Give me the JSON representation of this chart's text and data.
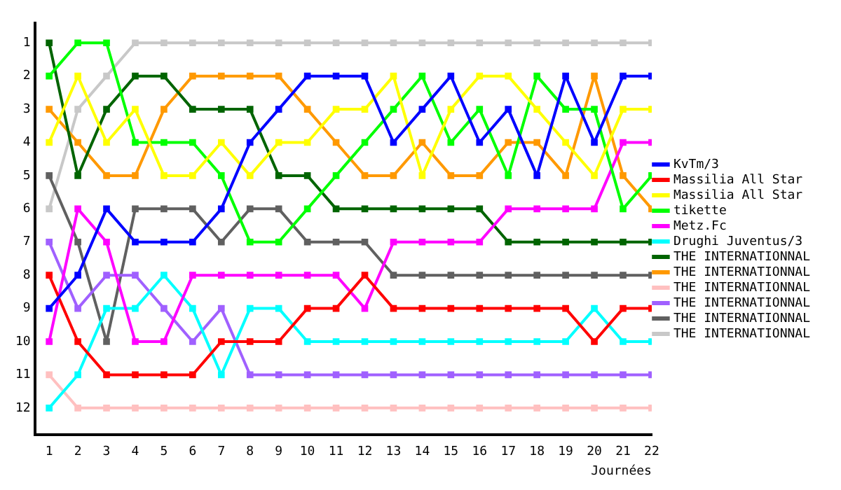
{
  "chart_data": {
    "type": "line",
    "xlabel": "Journées",
    "x": [
      1,
      2,
      3,
      4,
      5,
      6,
      7,
      8,
      9,
      10,
      11,
      12,
      13,
      14,
      15,
      16,
      17,
      18,
      19,
      20,
      21,
      22
    ],
    "xlim": [
      0.5,
      22
    ],
    "xticks": [
      1,
      2,
      3,
      4,
      5,
      6,
      7,
      8,
      9,
      10,
      11,
      12,
      13,
      14,
      15,
      16,
      17,
      18,
      19,
      20,
      21,
      22
    ],
    "ylim": [
      12.8,
      0.4
    ],
    "yticks": [
      1,
      2,
      3,
      4,
      5,
      6,
      7,
      8,
      9,
      10,
      11,
      12
    ],
    "grid": false,
    "legend": "right",
    "marker": "square",
    "line_style": "solid",
    "series": [
      {
        "name": "KvTm/3",
        "color": "#0000ff",
        "values": [
          9,
          8,
          6,
          7,
          7,
          7,
          6,
          4,
          3,
          2,
          2,
          2,
          4,
          3,
          2,
          4,
          3,
          5,
          2,
          4,
          2,
          2
        ]
      },
      {
        "name": "Massilia All Star",
        "color": "#ff0000",
        "values": [
          8,
          10,
          11,
          11,
          11,
          11,
          10,
          10,
          10,
          9,
          9,
          8,
          9,
          9,
          9,
          9,
          9,
          9,
          9,
          10,
          9,
          9
        ]
      },
      {
        "name": "Massilia All Star",
        "color": "#ffff00",
        "values": [
          4,
          2,
          4,
          3,
          5,
          5,
          4,
          5,
          4,
          4,
          3,
          3,
          2,
          5,
          3,
          2,
          2,
          3,
          4,
          5,
          3,
          3
        ]
      },
      {
        "name": "tikette",
        "color": "#00ff00",
        "values": [
          2,
          1,
          1,
          4,
          4,
          4,
          5,
          7,
          7,
          6,
          5,
          4,
          3,
          2,
          4,
          3,
          5,
          2,
          3,
          3,
          6,
          5
        ]
      },
      {
        "name": "Metz.Fc",
        "color": "#ff00ff",
        "values": [
          10,
          6,
          7,
          10,
          10,
          8,
          8,
          8,
          8,
          8,
          8,
          9,
          7,
          7,
          7,
          7,
          6,
          6,
          6,
          6,
          4,
          4
        ]
      },
      {
        "name": "Drughi Juventus/3",
        "color": "#00ffff",
        "values": [
          12,
          11,
          9,
          9,
          8,
          9,
          11,
          9,
          9,
          10,
          10,
          10,
          10,
          10,
          10,
          10,
          10,
          10,
          10,
          9,
          10,
          10
        ]
      },
      {
        "name": "THE INTERNATIONNAL",
        "color": "#006400",
        "values": [
          1,
          5,
          3,
          2,
          2,
          3,
          3,
          3,
          5,
          5,
          6,
          6,
          6,
          6,
          6,
          6,
          7,
          7,
          7,
          7,
          7,
          7
        ]
      },
      {
        "name": "THE INTERNATIONNAL",
        "color": "#ff9900",
        "values": [
          3,
          4,
          5,
          5,
          3,
          2,
          2,
          2,
          2,
          3,
          4,
          5,
          5,
          4,
          5,
          5,
          4,
          4,
          5,
          2,
          5,
          6
        ]
      },
      {
        "name": "THE INTERNATIONNAL",
        "color": "#ffc0c0",
        "values": [
          11,
          12,
          12,
          12,
          12,
          12,
          12,
          12,
          12,
          12,
          12,
          12,
          12,
          12,
          12,
          12,
          12,
          12,
          12,
          12,
          12,
          12
        ]
      },
      {
        "name": "THE INTERNATIONNAL",
        "color": "#a060ff",
        "values": [
          7,
          9,
          8,
          8,
          9,
          10,
          9,
          11,
          11,
          11,
          11,
          11,
          11,
          11,
          11,
          11,
          11,
          11,
          11,
          11,
          11,
          11
        ]
      },
      {
        "name": "THE INTERNATIONNAL",
        "color": "#606060",
        "values": [
          5,
          7,
          10,
          6,
          6,
          6,
          7,
          6,
          6,
          7,
          7,
          7,
          8,
          8,
          8,
          8,
          8,
          8,
          8,
          8,
          8,
          8
        ]
      },
      {
        "name": "THE INTERNATIONNAL",
        "color": "#c8c8c8",
        "values": [
          6,
          3,
          2,
          1,
          1,
          1,
          1,
          1,
          1,
          1,
          1,
          1,
          1,
          1,
          1,
          1,
          1,
          1,
          1,
          1,
          1,
          1
        ]
      }
    ]
  }
}
